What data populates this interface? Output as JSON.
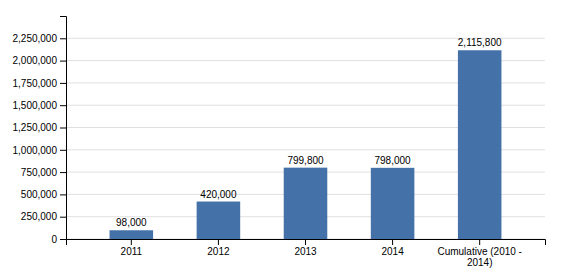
{
  "chart_data": {
    "type": "bar",
    "categories": [
      "2011",
      "2012",
      "2013",
      "2014",
      "Cumulative (2010 -\n2014)"
    ],
    "values": [
      98000,
      420000,
      799800,
      798000,
      2115800
    ],
    "value_labels": [
      "98,000",
      "420,000",
      "799,800",
      "798,000",
      "2,115,800"
    ],
    "data_labels": true,
    "color": "#4472a8",
    "ylim": [
      0,
      2500000
    ],
    "yticks": [
      0,
      {
        "value": 250000,
        "label": "250,000"
      },
      {
        "value": 500000,
        "label": "500,000"
      },
      {
        "value": 750000,
        "label": "750,000"
      },
      {
        "value": 1000000,
        "label": "1,000,000"
      },
      {
        "value": 1250000,
        "label": "1,250,000"
      },
      {
        "value": 1500000,
        "label": "1,500,000"
      },
      {
        "value": 1750000,
        "label": "1,750,000"
      },
      {
        "value": 2000000,
        "label": "2,000,000"
      },
      {
        "value": 2250000,
        "label": "2,250,000"
      }
    ],
    "grid": true
  }
}
